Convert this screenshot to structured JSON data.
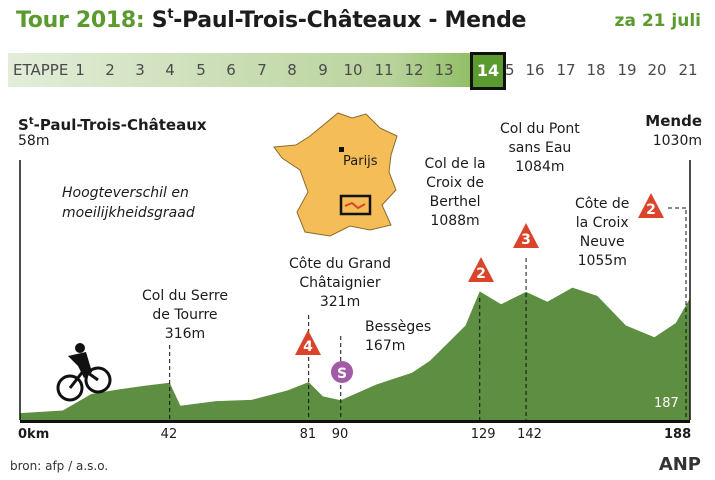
{
  "header": {
    "tour_label": "Tour 2018:",
    "route_prefix": "S",
    "route_sup": "t",
    "route_rest": "-Paul-Trois-Châteaux - Mende",
    "date": "za 21 juli"
  },
  "etappe": {
    "label": "ETAPPE",
    "stages": [
      "1",
      "2",
      "3",
      "4",
      "5",
      "6",
      "7",
      "8",
      "9",
      "10",
      "11",
      "12",
      "13",
      "14",
      "15",
      "16",
      "17",
      "18",
      "19",
      "20",
      "21"
    ],
    "current": "14"
  },
  "start": {
    "name_prefix": "S",
    "name_sup": "t",
    "name_rest": "-Paul-Trois-Châteaux",
    "elevation": "58m"
  },
  "finish": {
    "name": "Mende",
    "elevation": "1030m"
  },
  "legend_note": [
    "Hoogteverschil en",
    "moeilijkheidsgraad"
  ],
  "map": {
    "city": "Parijs"
  },
  "climbs": [
    {
      "name": [
        "Col du Serre",
        "de Tourre"
      ],
      "elevation": "316m",
      "km": "42"
    },
    {
      "name": [
        "Côte du Grand",
        "Châtaignier"
      ],
      "elevation": "321m",
      "km": "81",
      "category": "4"
    },
    {
      "name": [
        "Bessèges"
      ],
      "elevation": "167m",
      "km": "90",
      "category": "S"
    },
    {
      "name": [
        "Col de la",
        "Croix de",
        "Berthel"
      ],
      "elevation": "1088m",
      "km": "129",
      "category": "2"
    },
    {
      "name": [
        "Col du Pont",
        "sans Eau"
      ],
      "elevation": "1084m",
      "km": "142",
      "category": "3"
    },
    {
      "name": [
        "Côte de",
        "la Croix",
        "Neuve"
      ],
      "elevation": "1055m",
      "km": "187",
      "category": "2"
    }
  ],
  "axis": {
    "start": "0km",
    "end": "188",
    "last_climb_km": "187"
  },
  "colors": {
    "green": "#5a9a2e",
    "profile": "#5e8e42",
    "climb": "#d9442b",
    "sprint": "#a05aa6",
    "map": "#f5bd57"
  },
  "footer": {
    "source": "bron: afp / a.s.o.",
    "logo": "ANP"
  },
  "chart_data": {
    "type": "area",
    "xlabel": "",
    "ylabel": "",
    "xlim": [
      0,
      188
    ],
    "x": [
      0,
      12,
      20,
      28,
      35,
      42,
      45,
      55,
      65,
      75,
      81,
      85,
      90,
      100,
      110,
      115,
      120,
      125,
      129,
      135,
      142,
      148,
      155,
      162,
      170,
      178,
      184,
      188
    ],
    "y": [
      58,
      80,
      220,
      260,
      290,
      316,
      120,
      160,
      170,
      250,
      321,
      200,
      167,
      300,
      400,
      500,
      650,
      800,
      1088,
      980,
      1084,
      1000,
      1120,
      1050,
      800,
      700,
      820,
      1030
    ]
  }
}
